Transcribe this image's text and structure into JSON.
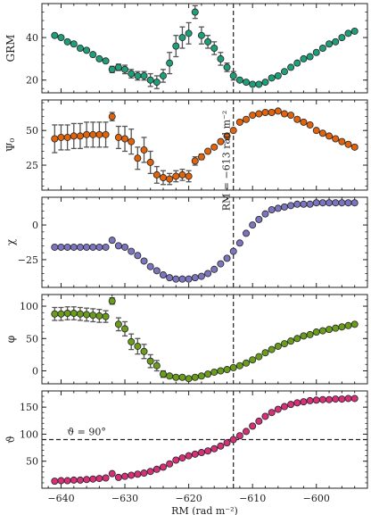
{
  "chart_data": {
    "type": "scatter",
    "layout": "stacked-panels-shared-x",
    "xlabel": "RM (rad m⁻²)",
    "xlim": [
      -643,
      -592
    ],
    "xticks": [
      -640,
      -630,
      -620,
      -610,
      -600
    ],
    "xtick_labels": [
      "−640",
      "−630",
      "−620",
      "−610",
      "−600"
    ],
    "x": [
      -641,
      -640,
      -639,
      -638,
      -637,
      -636,
      -635,
      -634,
      -633,
      -632,
      -631,
      -630,
      -629,
      -628,
      -627,
      -626,
      -625,
      -624,
      -623,
      -622,
      -621,
      -620,
      -619,
      -618,
      -617,
      -616,
      -615,
      -614,
      -613,
      -612,
      -611,
      -610,
      -609,
      -608,
      -607,
      -606,
      -605,
      -604,
      -603,
      -602,
      -601,
      -600,
      -599,
      -598,
      -597,
      -596,
      -595,
      -594
    ],
    "vline": {
      "x": -613,
      "label": "RM = −613 rad m⁻²"
    },
    "panels": [
      {
        "ylabel": "GRM",
        "ylim": [
          14,
          56
        ],
        "yticks": [
          20,
          40
        ],
        "ytick_labels": [
          "20",
          "40"
        ],
        "color": "#1f9e7a",
        "values": [
          41,
          40,
          38,
          37,
          35,
          34,
          32,
          30,
          29,
          25,
          26,
          25,
          23,
          22,
          22,
          20,
          19,
          22,
          28,
          36,
          40,
          42,
          52,
          41,
          38,
          35,
          30,
          26,
          22,
          20,
          19,
          18,
          18,
          19,
          21,
          22,
          24,
          26,
          28,
          30,
          31,
          33,
          35,
          37,
          38,
          40,
          42,
          43
        ],
        "errors": [
          0,
          0,
          0,
          0,
          0,
          0,
          0,
          0,
          0,
          1.5,
          1.5,
          2,
          2,
          2,
          2,
          3,
          3,
          3,
          5,
          5,
          5,
          5,
          3,
          4,
          3,
          3,
          3,
          2,
          2,
          0,
          0,
          0,
          0,
          0,
          0,
          0,
          0,
          0,
          0,
          0,
          0,
          0,
          0,
          0,
          0,
          0,
          0,
          0
        ]
      },
      {
        "ylabel": "Ψ₀",
        "ylim": [
          7,
          72
        ],
        "yticks": [
          25,
          50
        ],
        "ytick_labels": [
          "25",
          "50"
        ],
        "color": "#e3630c",
        "values": [
          44,
          45,
          45,
          46,
          46,
          47,
          47,
          47,
          47,
          60,
          45,
          44,
          42,
          30,
          36,
          27,
          18,
          16,
          15,
          17,
          18,
          17,
          28,
          31,
          35,
          38,
          42,
          46,
          50,
          56,
          58,
          61,
          62,
          63,
          63,
          64,
          62,
          61,
          58,
          56,
          54,
          50,
          48,
          46,
          44,
          42,
          40,
          38
        ],
        "errors": [
          10,
          9,
          9,
          9,
          9,
          9,
          9,
          9,
          9,
          3,
          8,
          9,
          9,
          8,
          9,
          8,
          6,
          5,
          4,
          4,
          4,
          4,
          3,
          2,
          0,
          0,
          0,
          0,
          0,
          0,
          0,
          0,
          0,
          0,
          0,
          0,
          0,
          0,
          0,
          0,
          0,
          0,
          0,
          0,
          0,
          0,
          0,
          0
        ]
      },
      {
        "ylabel": "χ",
        "ylim": [
          -45,
          20
        ],
        "yticks": [
          -25,
          0
        ],
        "ytick_labels": [
          "−25",
          "0"
        ],
        "color": "#7b74bf",
        "values": [
          -16,
          -16,
          -16,
          -16,
          -16,
          -16,
          -16,
          -16,
          -16,
          -11,
          -15,
          -16,
          -19,
          -22,
          -26,
          -30,
          -33,
          -36,
          -38,
          -39,
          -39,
          -39,
          -38,
          -37,
          -35,
          -32,
          -28,
          -24,
          -19,
          -13,
          -6,
          0,
          4,
          8,
          11,
          12,
          13,
          14,
          15,
          15,
          15,
          16,
          16,
          16,
          16,
          16,
          16,
          16
        ],
        "errors": [
          0,
          0,
          0,
          0,
          0,
          0,
          0,
          0,
          0,
          0,
          0,
          0,
          0,
          0,
          0,
          0,
          0,
          0,
          0,
          0,
          0,
          0,
          0,
          0,
          0,
          0,
          0,
          0,
          0,
          0,
          0,
          0,
          0,
          0,
          0,
          0,
          0,
          0,
          0,
          0,
          0,
          0,
          0,
          0,
          0,
          0,
          0,
          0
        ]
      },
      {
        "ylabel": "φ",
        "ylim": [
          -20,
          118
        ],
        "yticks": [
          0,
          50,
          100
        ],
        "ytick_labels": [
          "0",
          "50",
          "100"
        ],
        "color": "#6a9d1b",
        "values": [
          88,
          88,
          89,
          89,
          88,
          87,
          86,
          85,
          84,
          108,
          72,
          65,
          45,
          38,
          30,
          15,
          8,
          -5,
          -8,
          -10,
          -10,
          -12,
          -10,
          -8,
          -5,
          -2,
          0,
          2,
          5,
          8,
          12,
          17,
          22,
          28,
          33,
          38,
          42,
          46,
          50,
          54,
          56,
          60,
          62,
          64,
          66,
          68,
          70,
          72
        ],
        "errors": [
          10,
          10,
          10,
          10,
          10,
          10,
          10,
          10,
          9,
          5,
          10,
          11,
          12,
          12,
          11,
          10,
          8,
          5,
          3,
          2,
          2,
          2,
          0,
          0,
          0,
          0,
          0,
          0,
          0,
          0,
          0,
          0,
          0,
          0,
          0,
          0,
          0,
          0,
          0,
          0,
          0,
          0,
          0,
          0,
          0,
          0,
          0,
          0
        ]
      },
      {
        "ylabel": "ϑ",
        "ylim": [
          0,
          180
        ],
        "yticks": [
          50,
          100,
          150
        ],
        "ytick_labels": [
          "50",
          "100",
          "150"
        ],
        "color": "#d63079",
        "values": [
          13,
          14,
          14,
          15,
          15,
          16,
          17,
          18,
          19,
          27,
          20,
          22,
          24,
          26,
          28,
          31,
          35,
          39,
          45,
          52,
          56,
          60,
          63,
          66,
          69,
          73,
          78,
          84,
          90,
          97,
          105,
          115,
          124,
          133,
          140,
          146,
          151,
          155,
          158,
          160,
          162,
          163,
          164,
          164,
          165,
          165,
          166,
          166
        ],
        "errors": [
          0,
          0,
          0,
          0,
          0,
          0,
          0,
          0,
          0,
          0,
          0,
          0,
          0,
          0,
          0,
          0,
          0,
          0,
          0,
          0,
          0,
          0,
          0,
          0,
          0,
          0,
          0,
          0,
          0,
          0,
          0,
          0,
          0,
          0,
          0,
          0,
          0,
          0,
          0,
          0,
          0,
          0,
          0,
          0,
          0,
          0,
          0,
          0
        ],
        "hline": {
          "y": 90,
          "label": "ϑ = 90°"
        }
      }
    ]
  }
}
